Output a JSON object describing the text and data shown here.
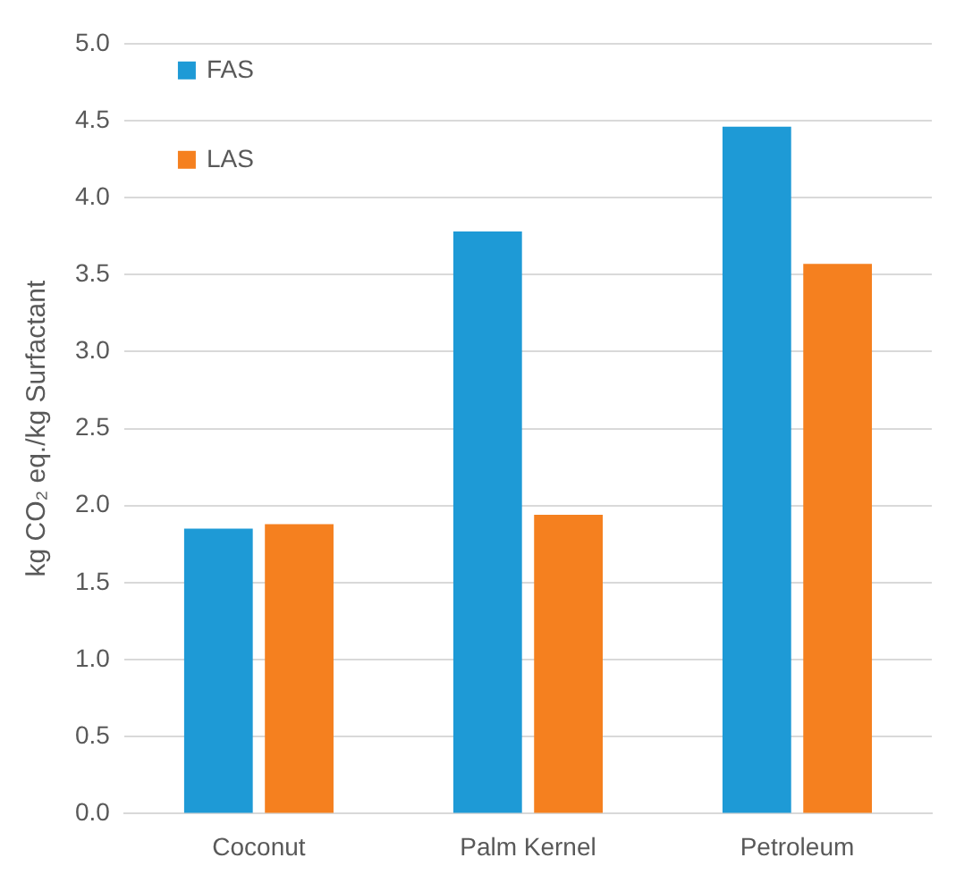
{
  "chart_data": {
    "type": "bar",
    "ylabel": "kg CO₂ eq./kg Surfactant",
    "categories": [
      "Coconut",
      "Palm Kernel",
      "Petroleum"
    ],
    "series": [
      {
        "name": "FAS",
        "color": "#1e9ad6",
        "values": [
          1.85,
          3.78,
          4.46
        ]
      },
      {
        "name": "LAS",
        "color": "#f5801f",
        "values": [
          1.88,
          1.94,
          3.57
        ]
      }
    ],
    "ylim": [
      0,
      5
    ],
    "yticks": [
      {
        "value": 0,
        "label": "0.0"
      },
      0.5,
      {
        "value": 1,
        "label": "1.0"
      },
      1.5,
      {
        "value": 2,
        "label": "2.0"
      },
      2.5,
      {
        "value": 3,
        "label": "3.0"
      },
      3.5,
      {
        "value": 4,
        "label": "4.0"
      },
      4.5,
      {
        "value": 5,
        "label": "5.0"
      }
    ],
    "grid": "y",
    "legend": "top left"
  }
}
